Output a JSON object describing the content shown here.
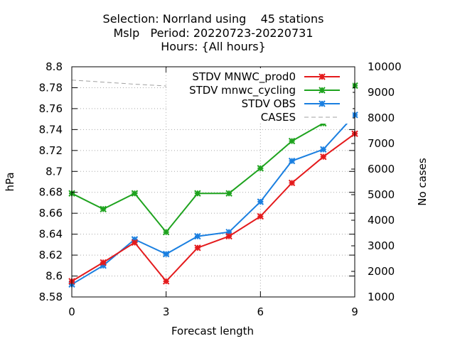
{
  "chart_data": {
    "type": "line",
    "title_lines": [
      "Selection: Norrland using    45 stations",
      "Mslp   Period: 20220723-20220731",
      "Hours: {All hours}"
    ],
    "xlabel": "Forecast length",
    "ylabel": "hPa",
    "y2label": "No cases",
    "x": [
      0,
      1,
      2,
      3,
      4,
      5,
      6,
      7,
      8,
      9
    ],
    "xlim": [
      0,
      9
    ],
    "ylim": [
      8.58,
      8.8
    ],
    "y2lim": [
      1000,
      10000
    ],
    "xticks": [
      "0",
      "3",
      "6",
      "9"
    ],
    "yticks": [
      "8.58",
      "8.6",
      "8.62",
      "8.64",
      "8.66",
      "8.68",
      "8.7",
      "8.72",
      "8.74",
      "8.76",
      "8.78",
      "8.8"
    ],
    "y2ticks": [
      "1000",
      "2000",
      "3000",
      "4000",
      "5000",
      "6000",
      "7000",
      "8000",
      "9000",
      "10000"
    ],
    "grid": true,
    "legend_position": "top-right",
    "series": [
      {
        "name": "STDV MNWC_prod0",
        "color": "#e41a1c",
        "axis": "y",
        "values": [
          8.595,
          8.613,
          8.632,
          8.595,
          8.627,
          8.638,
          8.657,
          8.689,
          8.714,
          8.736
        ]
      },
      {
        "name": "STDV mnwc_cycling",
        "color": "#1ea31e",
        "axis": "y",
        "values": [
          8.679,
          8.664,
          8.679,
          8.642,
          8.679,
          8.679,
          8.703,
          8.729,
          8.746,
          8.782
        ]
      },
      {
        "name": "STDV OBS",
        "color": "#1a7fe0",
        "axis": "y",
        "values": [
          8.592,
          8.61,
          8.635,
          8.621,
          8.638,
          8.642,
          8.671,
          8.71,
          8.721,
          8.754
        ]
      },
      {
        "name": "CASES",
        "color": "#a0a0a0",
        "axis": "y2",
        "dashed": true,
        "values": [
          9480,
          9400,
          9320,
          9250,
          9180,
          9100,
          9030,
          8950,
          8880,
          8800
        ]
      }
    ]
  }
}
